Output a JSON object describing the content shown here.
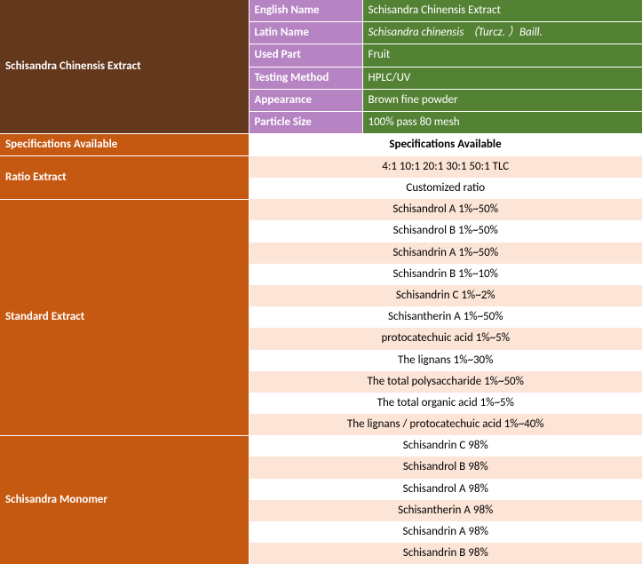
{
  "title": "Schisandra Chinensis Extract",
  "properties": [
    {
      "label": "English Name",
      "value": "Schisandra Chinensis Extract",
      "italic": false
    },
    {
      "label": "Latin Name",
      "value": "Schisandra chinensis  （Turcz. ）Baill.",
      "italic": true
    },
    {
      "label": "Used Part",
      "value": "Fruit",
      "italic": false
    },
    {
      "label": "Testing Method",
      "value": "HPLC/UV",
      "italic": false
    },
    {
      "label": "Appearance",
      "value": "Brown fine powder",
      "italic": false
    },
    {
      "label": "Particle Size",
      "value": "100% pass 80 mesh",
      "italic": false
    }
  ],
  "sectionHeader": "Specifications Available",
  "specHeader": "Specifications Available",
  "groups": [
    {
      "label": "Ratio Extract",
      "rows": [
        "4:1  10:1  20:1 30:1 50:1 TLC",
        "Customized ratio"
      ]
    },
    {
      "label": "Standard  Extract",
      "rows": [
        "Schisandrol A 1%~50%",
        "Schisandrol B 1%~50%",
        "Schisandrin A 1%~50%",
        "Schisandrin B 1%~10%",
        "Schisandrin C 1%~2%",
        "Schisantherin A 1%~50%",
        "protocatechuic acid 1%~5%",
        "The lignans 1%~30%",
        "The total polysaccharide  1%~50%",
        "The total organic acid 1%~5%",
        "The lignans / protocatechuic acid 1%~40%"
      ]
    },
    {
      "label": "Schisandra Monomer",
      "rows": [
        "Schisandrin C 98%",
        "Schisandrol B 98%",
        "Schisandrol A 98%",
        "Schisantherin A 98%",
        "Schisandrin A 98%",
        "Schisandrin B 98%"
      ]
    }
  ]
}
